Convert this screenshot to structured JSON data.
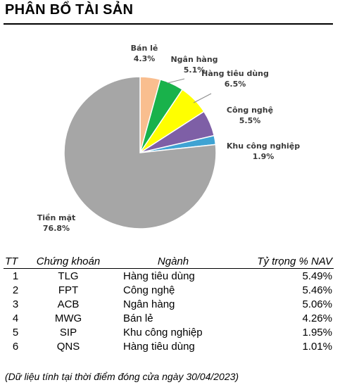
{
  "title": "PHÂN BỔ TÀI SẢN",
  "chart_data": {
    "type": "pie",
    "slices": [
      {
        "label": "Tiền mặt",
        "value": 76.8,
        "display": "76.8%",
        "color": "#a6a6a6"
      },
      {
        "label": "Bán lẻ",
        "value": 4.3,
        "display": "4.3%",
        "color": "#f9be8f"
      },
      {
        "label": "Ngân hàng",
        "value": 5.1,
        "display": "5.1%",
        "color": "#19b24b"
      },
      {
        "label": "Hàng tiêu dùng",
        "value": 6.5,
        "display": "6.5%",
        "color": "#ffff00"
      },
      {
        "label": "Công nghệ",
        "value": 5.5,
        "display": "5.5%",
        "color": "#7e5fa6"
      },
      {
        "label": "Khu công nghiệp",
        "value": 1.9,
        "display": "1.9%",
        "color": "#3fa3d3"
      }
    ]
  },
  "table": {
    "headers": [
      "TT",
      "Chứng khoán",
      "Ngành",
      "Tỷ trọng % NAV"
    ],
    "rows": [
      [
        "1",
        "TLG",
        "Hàng tiêu dùng",
        "5.49%"
      ],
      [
        "2",
        "FPT",
        "Công nghệ",
        "5.46%"
      ],
      [
        "3",
        "ACB",
        "Ngân hàng",
        "5.06%"
      ],
      [
        "4",
        "MWG",
        "Bán lẻ",
        "4.26%"
      ],
      [
        "5",
        "SIP",
        "Khu công nghiệp",
        "1.95%"
      ],
      [
        "6",
        "QNS",
        "Hàng tiêu dùng",
        "1.01%"
      ]
    ]
  },
  "note": "(Dữ liệu tính tại thời điểm đóng cửa ngày 30/04/2023)"
}
